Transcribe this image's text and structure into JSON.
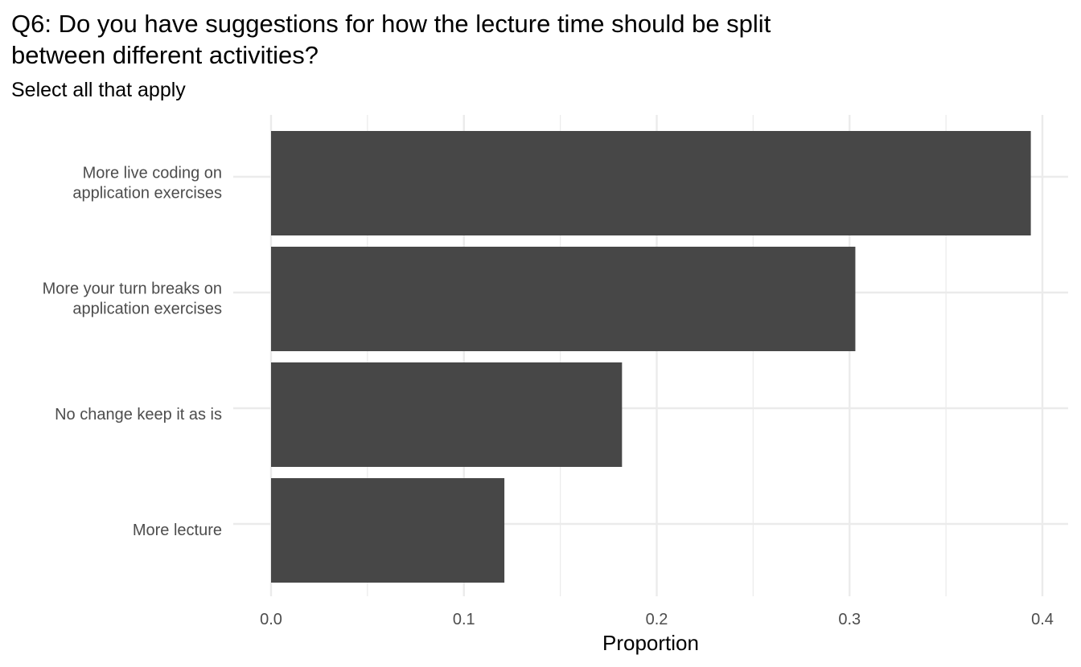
{
  "chart_data": {
    "type": "bar",
    "orientation": "horizontal",
    "title": "Q6: Do you have suggestions for how the lecture time should be split between different activities?",
    "title_lines": [
      "Q6: Do you have suggestions for how the lecture time should be split",
      "between different activities?"
    ],
    "subtitle": "Select all that apply",
    "xlabel": "Proportion",
    "ylabel": "",
    "categories": [
      "More live coding on\napplication exercises",
      "More your turn breaks on\napplication exercises",
      "No change keep it as is",
      "More lecture"
    ],
    "values": [
      0.394,
      0.303,
      0.182,
      0.121
    ],
    "xlim": [
      0.0,
      0.4
    ],
    "xticks": [
      "0.0",
      "0.1",
      "0.2",
      "0.3",
      "0.4"
    ],
    "xtick_values": [
      0.0,
      0.1,
      0.2,
      0.3,
      0.4
    ],
    "grid": true,
    "legend": "none",
    "bar_color": "#474747",
    "grid_color": "#ebebeb"
  }
}
